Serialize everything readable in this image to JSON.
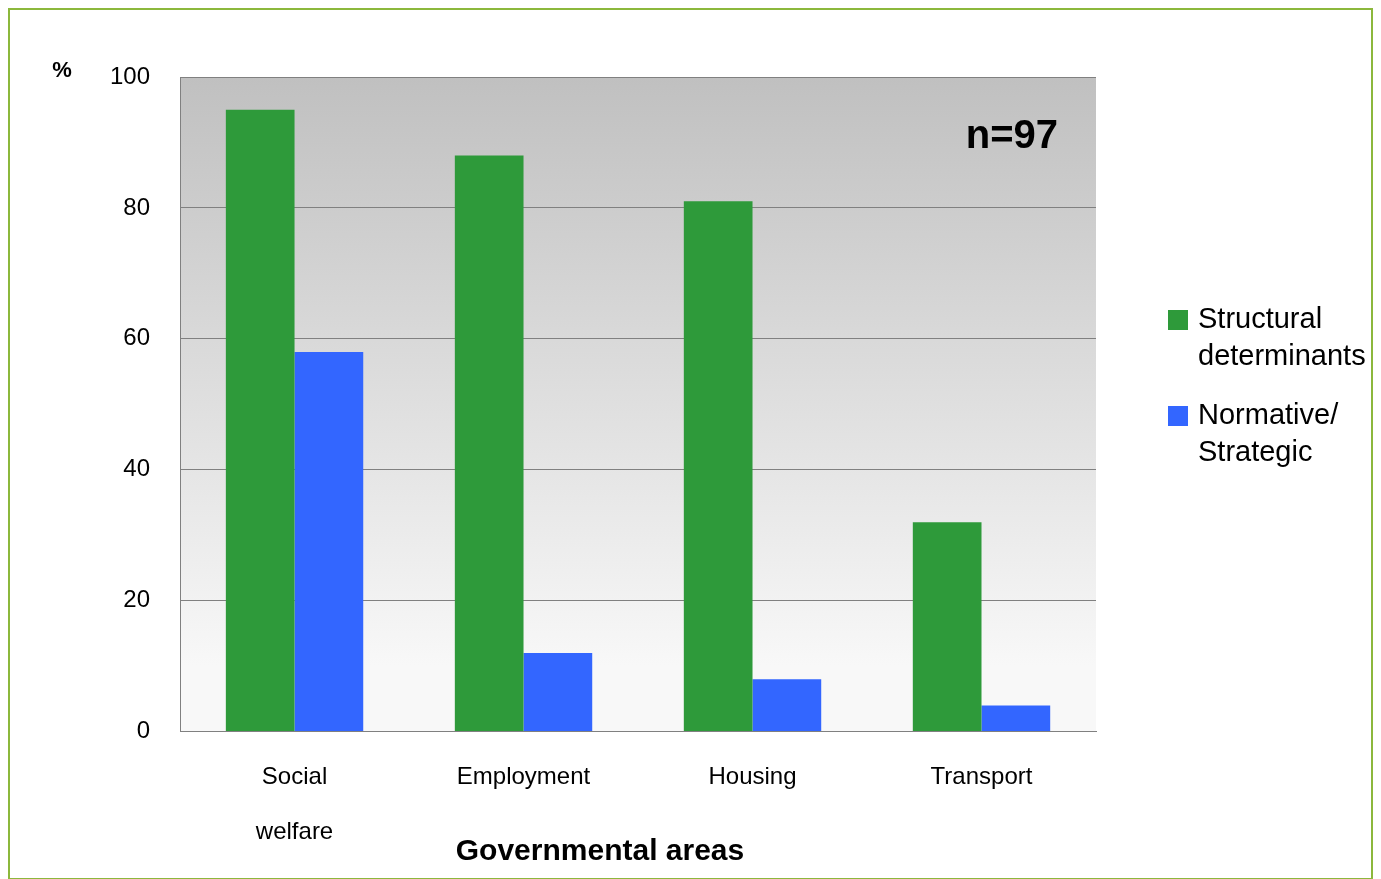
{
  "chart_data": {
    "type": "bar",
    "ylabel": "%",
    "xlabel": "Governmental areas",
    "categories": [
      "Social welfare",
      "Employment",
      "Housing",
      "Transport"
    ],
    "series": [
      {
        "name": "Structural determinants",
        "color": "#2e9a3a",
        "values": [
          95,
          88,
          81,
          32
        ]
      },
      {
        "name": "Normative/ Strategic",
        "color": "#3366ff",
        "values": [
          58,
          12,
          8,
          4
        ]
      }
    ],
    "ylim": [
      0,
      100
    ],
    "yticks": [
      0,
      20,
      40,
      60,
      80,
      100
    ],
    "grid": "y",
    "legend": "right",
    "annotations": [
      "n=97"
    ]
  }
}
